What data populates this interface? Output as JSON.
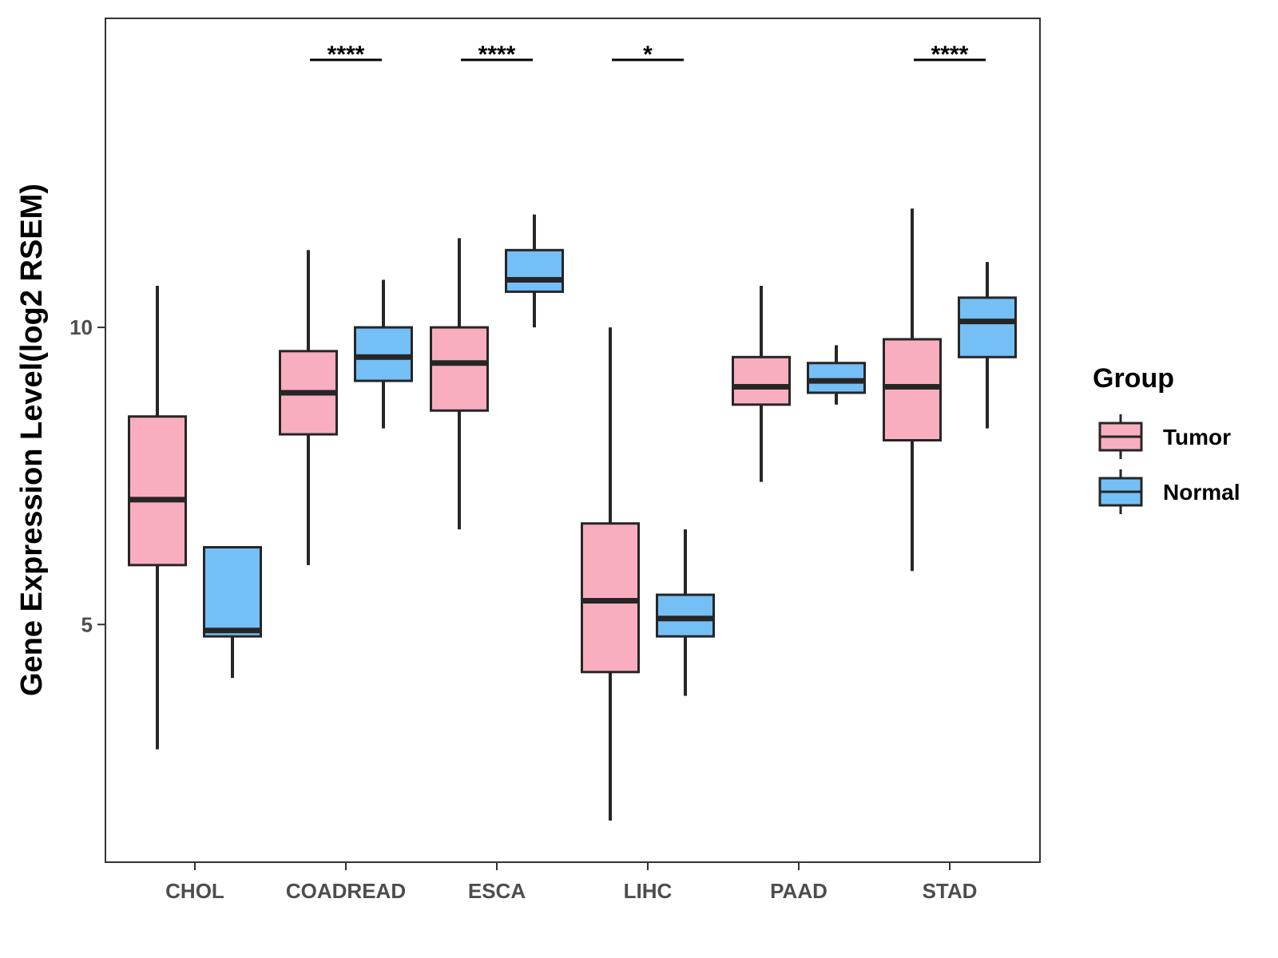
{
  "chart_data": {
    "type": "box",
    "title": "",
    "xlabel": "",
    "ylabel": "Gene Expression Level(log2 RSEM)",
    "ylim": [
      1.0,
      15.2
    ],
    "y_ticks": [
      5,
      10
    ],
    "grid": false,
    "categories": [
      "CHOL",
      "COADREAD",
      "ESCA",
      "LIHC",
      "PAAD",
      "STAD"
    ],
    "series": [
      {
        "name": "Tumor",
        "color": "#F9AEC0",
        "boxes": [
          {
            "whisker_low": 2.9,
            "q1": 6.0,
            "median": 7.1,
            "q3": 8.5,
            "whisker_high": 10.7
          },
          {
            "whisker_low": 6.0,
            "q1": 8.2,
            "median": 8.9,
            "q3": 9.6,
            "whisker_high": 11.3
          },
          {
            "whisker_low": 6.6,
            "q1": 8.6,
            "median": 9.4,
            "q3": 10.0,
            "whisker_high": 11.5
          },
          {
            "whisker_low": 1.7,
            "q1": 4.2,
            "median": 5.4,
            "q3": 6.7,
            "whisker_high": 10.0
          },
          {
            "whisker_low": 7.4,
            "q1": 8.7,
            "median": 9.0,
            "q3": 9.5,
            "whisker_high": 10.7
          },
          {
            "whisker_low": 5.9,
            "q1": 8.1,
            "median": 9.0,
            "q3": 9.8,
            "whisker_high": 12.0
          }
        ]
      },
      {
        "name": "Normal",
        "color": "#75BFF7",
        "boxes": [
          {
            "whisker_low": 4.1,
            "q1": 4.8,
            "median": 4.9,
            "q3": 6.3,
            "whisker_high": 6.3
          },
          {
            "whisker_low": 8.3,
            "q1": 9.1,
            "median": 9.5,
            "q3": 10.0,
            "whisker_high": 10.8
          },
          {
            "whisker_low": 10.0,
            "q1": 10.6,
            "median": 10.8,
            "q3": 11.3,
            "whisker_high": 11.9
          },
          {
            "whisker_low": 3.8,
            "q1": 4.8,
            "median": 5.1,
            "q3": 5.5,
            "whisker_high": 6.6
          },
          {
            "whisker_low": 8.7,
            "q1": 8.9,
            "median": 9.1,
            "q3": 9.4,
            "whisker_high": 9.7
          },
          {
            "whisker_low": 8.3,
            "q1": 9.5,
            "median": 10.1,
            "q3": 10.5,
            "whisker_high": 11.1
          }
        ]
      }
    ],
    "significance": [
      "",
      "****",
      "****",
      "*",
      "",
      "****"
    ],
    "legend": {
      "title": "Group",
      "position": "right",
      "entries": [
        "Tumor",
        "Normal"
      ]
    }
  }
}
